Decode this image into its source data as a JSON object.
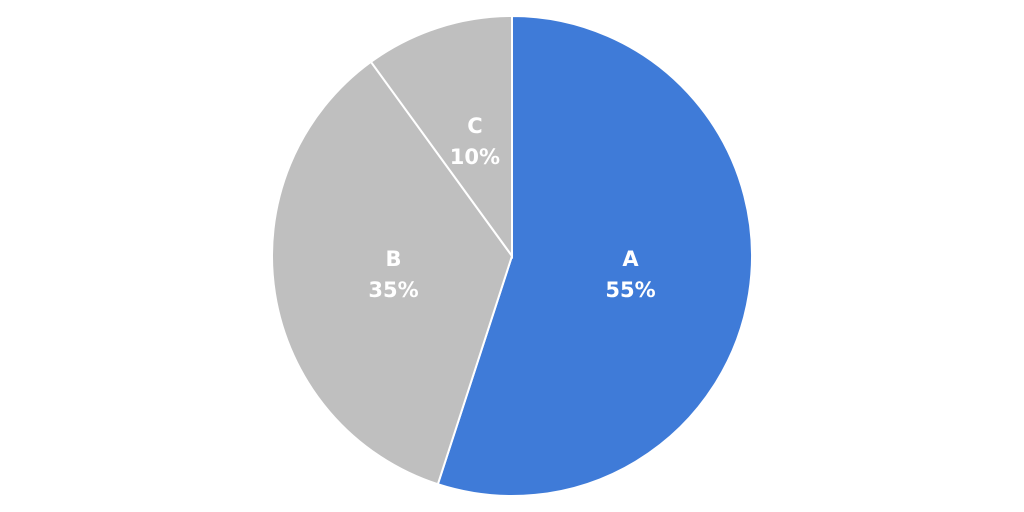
{
  "chart_data": {
    "type": "pie",
    "categories": [
      "A",
      "B",
      "C"
    ],
    "values": [
      55,
      35,
      10
    ],
    "value_labels": [
      "55%",
      "35%",
      "10%"
    ],
    "colors": [
      "#3f7bd8",
      "#bfbfbf",
      "#bfbfbf"
    ]
  }
}
